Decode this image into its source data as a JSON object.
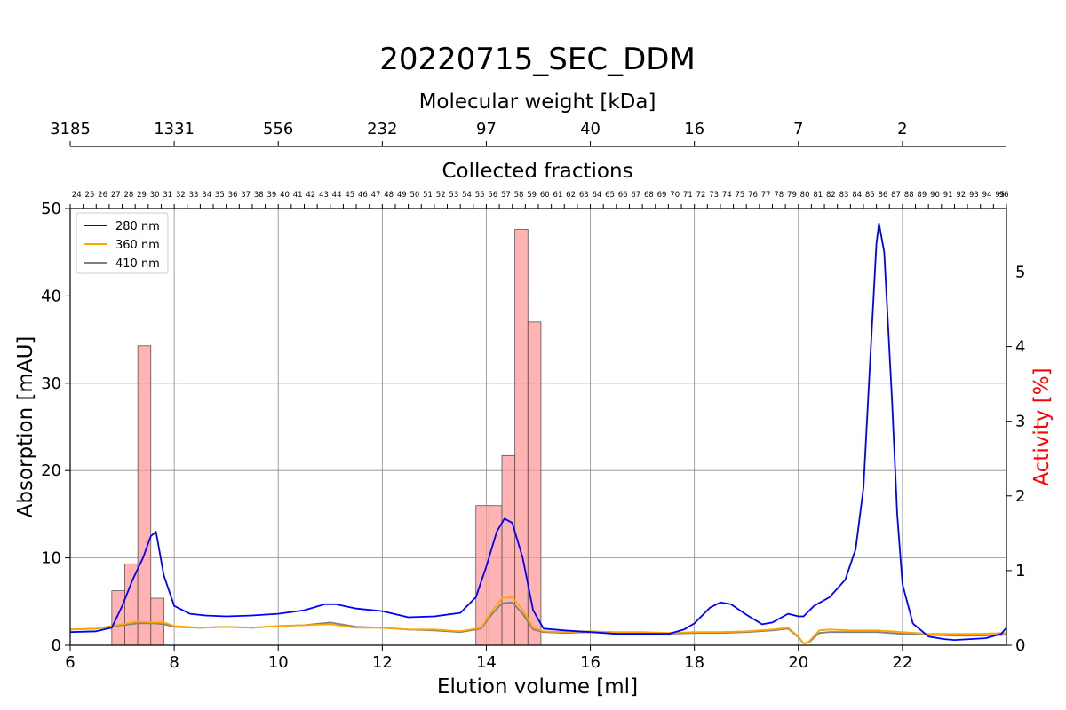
{
  "chart_data": {
    "type": "line",
    "title": "20220715_SEC_DDM",
    "xlabel": "Elution volume [ml]",
    "ylabel": "Absorption [mAU]",
    "y2label": "Activity [%]",
    "top_axis_label": "Molecular weight [kDa]",
    "fractions_label": "Collected fractions",
    "xlim": [
      6,
      24
    ],
    "ylim": [
      0,
      50
    ],
    "y2lim": [
      0,
      5.85
    ],
    "grid": true,
    "legend_position": "top-left",
    "x_ticks": [
      6,
      8,
      10,
      12,
      14,
      16,
      18,
      20,
      22
    ],
    "y_ticks": [
      0,
      10,
      20,
      30,
      40,
      50
    ],
    "y2_ticks": [
      0,
      1,
      2,
      3,
      4,
      5
    ],
    "mw_ticks": [
      {
        "x": 6,
        "label": "3185"
      },
      {
        "x": 8,
        "label": "1331"
      },
      {
        "x": 10,
        "label": "556"
      },
      {
        "x": 12,
        "label": "232"
      },
      {
        "x": 14,
        "label": "97"
      },
      {
        "x": 16,
        "label": "40"
      },
      {
        "x": 18,
        "label": "16"
      },
      {
        "x": 20,
        "label": "7"
      },
      {
        "x": 22,
        "label": "2"
      }
    ],
    "fractions": {
      "first": 24,
      "last": 96,
      "start_volume": 6.0,
      "width": 0.25
    },
    "series": [
      {
        "name": "280 nm",
        "color": "#0000ff",
        "points": [
          [
            6,
            1.5
          ],
          [
            6.5,
            1.6
          ],
          [
            6.8,
            2.0
          ],
          [
            7.0,
            4.5
          ],
          [
            7.2,
            7.5
          ],
          [
            7.4,
            10
          ],
          [
            7.55,
            12.5
          ],
          [
            7.65,
            13
          ],
          [
            7.8,
            8
          ],
          [
            8.0,
            4.5
          ],
          [
            8.3,
            3.6
          ],
          [
            8.6,
            3.4
          ],
          [
            9.0,
            3.3
          ],
          [
            9.5,
            3.4
          ],
          [
            10.0,
            3.6
          ],
          [
            10.5,
            4.0
          ],
          [
            10.9,
            4.7
          ],
          [
            11.1,
            4.7
          ],
          [
            11.5,
            4.2
          ],
          [
            12.0,
            3.9
          ],
          [
            12.5,
            3.2
          ],
          [
            13.0,
            3.3
          ],
          [
            13.5,
            3.7
          ],
          [
            13.8,
            5.5
          ],
          [
            14.0,
            9
          ],
          [
            14.2,
            13
          ],
          [
            14.35,
            14.5
          ],
          [
            14.5,
            14.0
          ],
          [
            14.7,
            10
          ],
          [
            14.9,
            4
          ],
          [
            15.1,
            1.9
          ],
          [
            15.5,
            1.7
          ],
          [
            16.0,
            1.5
          ],
          [
            16.5,
            1.3
          ],
          [
            17.0,
            1.3
          ],
          [
            17.5,
            1.3
          ],
          [
            17.8,
            1.8
          ],
          [
            18.0,
            2.5
          ],
          [
            18.3,
            4.3
          ],
          [
            18.5,
            4.9
          ],
          [
            18.7,
            4.7
          ],
          [
            19.0,
            3.5
          ],
          [
            19.3,
            2.4
          ],
          [
            19.5,
            2.6
          ],
          [
            19.8,
            3.6
          ],
          [
            20.0,
            3.3
          ],
          [
            20.1,
            3.3
          ],
          [
            20.3,
            4.5
          ],
          [
            20.6,
            5.5
          ],
          [
            20.9,
            7.5
          ],
          [
            21.1,
            11
          ],
          [
            21.25,
            18
          ],
          [
            21.4,
            35
          ],
          [
            21.5,
            46
          ],
          [
            21.55,
            48.3
          ],
          [
            21.65,
            45
          ],
          [
            21.8,
            28
          ],
          [
            21.9,
            15
          ],
          [
            22.0,
            7
          ],
          [
            22.2,
            2.5
          ],
          [
            22.5,
            1.0
          ],
          [
            22.8,
            0.7
          ],
          [
            23.0,
            0.6
          ],
          [
            23.3,
            0.7
          ],
          [
            23.6,
            0.8
          ],
          [
            23.9,
            1.3
          ],
          [
            24.0,
            2.0
          ]
        ]
      },
      {
        "name": "360 nm",
        "color": "#ffa500",
        "points": [
          [
            6,
            1.8
          ],
          [
            6.5,
            1.9
          ],
          [
            7.0,
            2.4
          ],
          [
            7.3,
            2.7
          ],
          [
            7.6,
            2.6
          ],
          [
            7.8,
            2.6
          ],
          [
            8.0,
            2.2
          ],
          [
            8.5,
            2.0
          ],
          [
            9.0,
            2.1
          ],
          [
            9.5,
            2.0
          ],
          [
            10.0,
            2.2
          ],
          [
            10.5,
            2.3
          ],
          [
            11.0,
            2.4
          ],
          [
            11.5,
            2.0
          ],
          [
            12.0,
            2.0
          ],
          [
            12.5,
            1.8
          ],
          [
            13.0,
            1.8
          ],
          [
            13.5,
            1.6
          ],
          [
            13.9,
            2.0
          ],
          [
            14.1,
            3.8
          ],
          [
            14.3,
            5.4
          ],
          [
            14.5,
            5.5
          ],
          [
            14.7,
            4.0
          ],
          [
            14.9,
            2.0
          ],
          [
            15.1,
            1.6
          ],
          [
            15.5,
            1.5
          ],
          [
            16.0,
            1.6
          ],
          [
            16.5,
            1.5
          ],
          [
            17.0,
            1.5
          ],
          [
            17.5,
            1.4
          ],
          [
            18.0,
            1.5
          ],
          [
            18.5,
            1.5
          ],
          [
            19.0,
            1.6
          ],
          [
            19.5,
            1.8
          ],
          [
            19.8,
            2.0
          ],
          [
            20.0,
            1.0
          ],
          [
            20.1,
            0.2
          ],
          [
            20.2,
            0.4
          ],
          [
            20.4,
            1.7
          ],
          [
            20.6,
            1.8
          ],
          [
            21.0,
            1.7
          ],
          [
            21.5,
            1.7
          ],
          [
            22.0,
            1.5
          ],
          [
            22.5,
            1.3
          ],
          [
            23.0,
            1.3
          ],
          [
            23.5,
            1.3
          ],
          [
            24.0,
            1.4
          ]
        ]
      },
      {
        "name": "410 nm",
        "color": "#808080",
        "points": [
          [
            6,
            1.8
          ],
          [
            6.5,
            1.9
          ],
          [
            7.0,
            2.3
          ],
          [
            7.3,
            2.5
          ],
          [
            7.6,
            2.5
          ],
          [
            7.8,
            2.4
          ],
          [
            8.0,
            2.1
          ],
          [
            8.5,
            2.0
          ],
          [
            9.0,
            2.1
          ],
          [
            9.5,
            2.0
          ],
          [
            10.0,
            2.2
          ],
          [
            10.5,
            2.3
          ],
          [
            11.0,
            2.6
          ],
          [
            11.5,
            2.1
          ],
          [
            12.0,
            2.0
          ],
          [
            12.5,
            1.8
          ],
          [
            13.0,
            1.7
          ],
          [
            13.5,
            1.5
          ],
          [
            13.9,
            1.9
          ],
          [
            14.1,
            3.5
          ],
          [
            14.3,
            4.8
          ],
          [
            14.5,
            4.9
          ],
          [
            14.7,
            3.6
          ],
          [
            14.9,
            1.8
          ],
          [
            15.1,
            1.5
          ],
          [
            15.5,
            1.4
          ],
          [
            16.0,
            1.5
          ],
          [
            16.5,
            1.4
          ],
          [
            17.0,
            1.4
          ],
          [
            17.5,
            1.3
          ],
          [
            18.0,
            1.4
          ],
          [
            18.5,
            1.4
          ],
          [
            19.0,
            1.5
          ],
          [
            19.5,
            1.7
          ],
          [
            19.8,
            1.9
          ],
          [
            20.0,
            0.9
          ],
          [
            20.1,
            0.2
          ],
          [
            20.2,
            0.3
          ],
          [
            20.4,
            1.4
          ],
          [
            20.6,
            1.5
          ],
          [
            21.0,
            1.5
          ],
          [
            21.5,
            1.5
          ],
          [
            22.0,
            1.3
          ],
          [
            22.5,
            1.2
          ],
          [
            23.0,
            1.1
          ],
          [
            23.5,
            1.1
          ],
          [
            24.0,
            1.2
          ]
        ]
      }
    ],
    "activity_bars": {
      "color": "#ff9999",
      "edge_color": "#555555",
      "bars": [
        {
          "x0": 6.8,
          "x1": 7.05,
          "value": 0.73
        },
        {
          "x0": 7.05,
          "x1": 7.3,
          "value": 1.09
        },
        {
          "x0": 7.3,
          "x1": 7.55,
          "value": 4.01
        },
        {
          "x0": 7.55,
          "x1": 7.8,
          "value": 0.63
        },
        {
          "x0": 13.8,
          "x1": 14.05,
          "value": 1.87
        },
        {
          "x0": 14.05,
          "x1": 14.3,
          "value": 1.87
        },
        {
          "x0": 14.3,
          "x1": 14.55,
          "value": 2.54
        },
        {
          "x0": 14.55,
          "x1": 14.8,
          "value": 5.57
        },
        {
          "x0": 14.8,
          "x1": 15.05,
          "value": 4.33
        }
      ]
    }
  }
}
